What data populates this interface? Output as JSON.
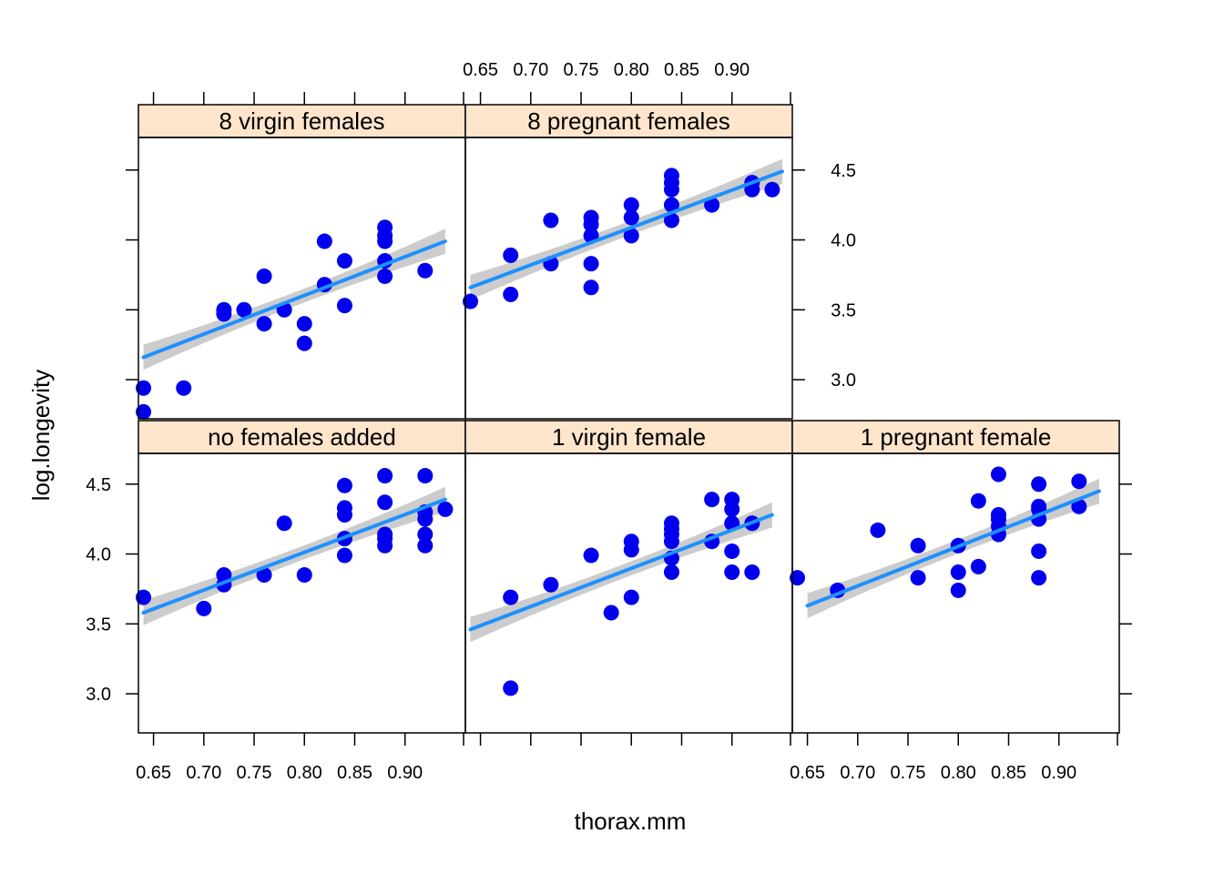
{
  "chart_data": {
    "type": "scatter",
    "layout": "lattice-trellis",
    "xlabel": "thorax.mm",
    "ylabel": "log.longevity",
    "x_ticks": [
      "0.65",
      "0.70",
      "0.75",
      "0.80",
      "0.85",
      "0.90"
    ],
    "y_ticks": [
      "3.0",
      "3.5",
      "4.0",
      "4.5"
    ],
    "xlim": [
      0.635,
      0.96
    ],
    "ylim": [
      2.72,
      4.72
    ],
    "colors": {
      "points": "#0000ee",
      "fit_line": "#1e90ff",
      "confidence_band": "#cccccc",
      "strip_background": "#ffe5cc"
    },
    "panels": [
      {
        "name": "8 virgin females",
        "fit": {
          "x": [
            0.64,
            0.94
          ],
          "y": [
            3.16,
            3.99
          ]
        },
        "band_halfwidth": [
          0.09,
          0.05,
          0.09
        ],
        "points": [
          [
            0.64,
            2.77
          ],
          [
            0.64,
            2.94
          ],
          [
            0.68,
            2.94
          ],
          [
            0.72,
            3.47
          ],
          [
            0.72,
            3.5
          ],
          [
            0.74,
            3.5
          ],
          [
            0.76,
            3.4
          ],
          [
            0.76,
            3.74
          ],
          [
            0.78,
            3.5
          ],
          [
            0.8,
            3.26
          ],
          [
            0.8,
            3.4
          ],
          [
            0.82,
            3.68
          ],
          [
            0.82,
            3.99
          ],
          [
            0.84,
            3.53
          ],
          [
            0.84,
            3.85
          ],
          [
            0.88,
            3.74
          ],
          [
            0.88,
            3.85
          ],
          [
            0.88,
            3.99
          ],
          [
            0.88,
            4.03
          ],
          [
            0.88,
            4.09
          ],
          [
            0.92,
            3.78
          ]
        ]
      },
      {
        "name": "8 pregnant females",
        "fit": {
          "x": [
            0.64,
            0.95
          ],
          "y": [
            3.66,
            4.49
          ]
        },
        "band_halfwidth": [
          0.09,
          0.05,
          0.09
        ],
        "points": [
          [
            0.64,
            3.56
          ],
          [
            0.68,
            3.61
          ],
          [
            0.68,
            3.89
          ],
          [
            0.72,
            3.83
          ],
          [
            0.72,
            4.14
          ],
          [
            0.76,
            3.66
          ],
          [
            0.76,
            3.83
          ],
          [
            0.76,
            4.03
          ],
          [
            0.76,
            4.11
          ],
          [
            0.76,
            4.16
          ],
          [
            0.8,
            4.03
          ],
          [
            0.8,
            4.16
          ],
          [
            0.8,
            4.25
          ],
          [
            0.84,
            4.14
          ],
          [
            0.84,
            4.25
          ],
          [
            0.84,
            4.36
          ],
          [
            0.84,
            4.41
          ],
          [
            0.84,
            4.46
          ],
          [
            0.88,
            4.25
          ],
          [
            0.92,
            4.36
          ],
          [
            0.92,
            4.41
          ],
          [
            0.94,
            4.36
          ]
        ]
      },
      {
        "name": "no females added",
        "fit": {
          "x": [
            0.64,
            0.94
          ],
          "y": [
            3.58,
            4.39
          ]
        },
        "band_halfwidth": [
          0.09,
          0.05,
          0.09
        ],
        "points": [
          [
            0.64,
            3.69
          ],
          [
            0.7,
            3.61
          ],
          [
            0.72,
            3.78
          ],
          [
            0.72,
            3.85
          ],
          [
            0.76,
            3.85
          ],
          [
            0.78,
            4.22
          ],
          [
            0.8,
            3.85
          ],
          [
            0.84,
            3.99
          ],
          [
            0.84,
            4.11
          ],
          [
            0.84,
            4.28
          ],
          [
            0.84,
            4.33
          ],
          [
            0.84,
            4.49
          ],
          [
            0.88,
            4.06
          ],
          [
            0.88,
            4.11
          ],
          [
            0.88,
            4.14
          ],
          [
            0.88,
            4.37
          ],
          [
            0.88,
            4.56
          ],
          [
            0.92,
            4.06
          ],
          [
            0.92,
            4.14
          ],
          [
            0.92,
            4.25
          ],
          [
            0.92,
            4.3
          ],
          [
            0.92,
            4.56
          ],
          [
            0.94,
            4.32
          ]
        ]
      },
      {
        "name": "1 virgin female",
        "fit": {
          "x": [
            0.64,
            0.94
          ],
          "y": [
            3.46,
            4.28
          ]
        },
        "band_halfwidth": [
          0.09,
          0.05,
          0.09
        ],
        "points": [
          [
            0.68,
            3.04
          ],
          [
            0.68,
            3.69
          ],
          [
            0.72,
            3.78
          ],
          [
            0.76,
            3.99
          ],
          [
            0.78,
            3.58
          ],
          [
            0.8,
            3.69
          ],
          [
            0.8,
            4.03
          ],
          [
            0.8,
            4.09
          ],
          [
            0.84,
            3.87
          ],
          [
            0.84,
            3.97
          ],
          [
            0.84,
            4.09
          ],
          [
            0.84,
            4.14
          ],
          [
            0.84,
            4.18
          ],
          [
            0.84,
            4.22
          ],
          [
            0.88,
            4.09
          ],
          [
            0.88,
            4.39
          ],
          [
            0.9,
            3.87
          ],
          [
            0.9,
            4.02
          ],
          [
            0.9,
            4.22
          ],
          [
            0.9,
            4.32
          ],
          [
            0.9,
            4.39
          ],
          [
            0.92,
            3.87
          ],
          [
            0.92,
            4.22
          ]
        ]
      },
      {
        "name": "1 pregnant female",
        "fit": {
          "x": [
            0.65,
            0.94
          ],
          "y": [
            3.63,
            4.45
          ]
        },
        "band_halfwidth": [
          0.09,
          0.05,
          0.09
        ],
        "points": [
          [
            0.64,
            3.83
          ],
          [
            0.68,
            3.74
          ],
          [
            0.72,
            4.17
          ],
          [
            0.76,
            3.83
          ],
          [
            0.76,
            4.06
          ],
          [
            0.8,
            3.74
          ],
          [
            0.8,
            3.87
          ],
          [
            0.8,
            4.06
          ],
          [
            0.82,
            3.91
          ],
          [
            0.82,
            4.38
          ],
          [
            0.84,
            4.14
          ],
          [
            0.84,
            4.2
          ],
          [
            0.84,
            4.25
          ],
          [
            0.84,
            4.28
          ],
          [
            0.84,
            4.57
          ],
          [
            0.88,
            3.83
          ],
          [
            0.88,
            4.02
          ],
          [
            0.88,
            4.25
          ],
          [
            0.88,
            4.32
          ],
          [
            0.88,
            4.34
          ],
          [
            0.88,
            4.5
          ],
          [
            0.92,
            4.34
          ],
          [
            0.92,
            4.52
          ]
        ]
      }
    ]
  }
}
